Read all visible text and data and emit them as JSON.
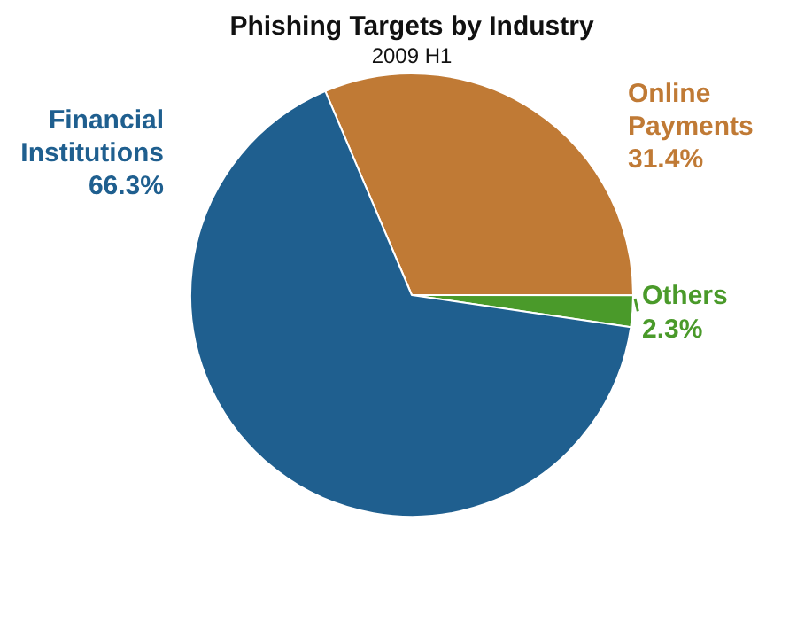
{
  "chart_data": {
    "type": "pie",
    "title": "Phishing Targets by Industry",
    "subtitle": "2009 H1",
    "categories": [
      "Online Payments",
      "Others",
      "Financial Institutions"
    ],
    "values": [
      31.4,
      2.3,
      66.3
    ],
    "colors": [
      "#c07a35",
      "#4a9a2a",
      "#1f5f8f"
    ],
    "value_labels": [
      "31.4%",
      "2.3%",
      "66.3%"
    ]
  }
}
